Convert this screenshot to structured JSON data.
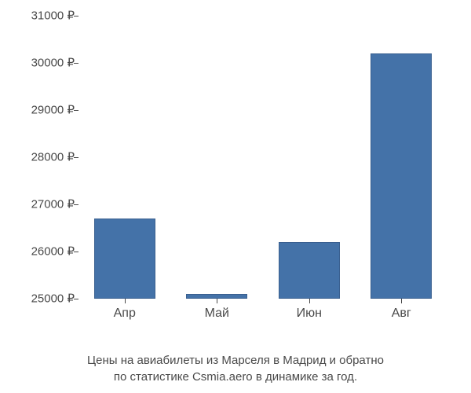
{
  "chart": {
    "type": "bar",
    "categories": [
      "Апр",
      "Май",
      "Июн",
      "Авг"
    ],
    "values": [
      26700,
      25100,
      26200,
      30200
    ],
    "bar_color": "#4472a8",
    "bar_border_color": "#3a6090",
    "bar_width_ratio": 0.75,
    "ylim": [
      25000,
      31000
    ],
    "ytick_step": 1000,
    "ytick_labels": [
      "25000 ₽",
      "26000 ₽",
      "27000 ₽",
      "28000 ₽",
      "29000 ₽",
      "30000 ₽",
      "31000 ₽"
    ],
    "ytick_values": [
      25000,
      26000,
      27000,
      28000,
      29000,
      30000,
      31000
    ],
    "axis_color": "#888888",
    "text_color": "#4a4a4a",
    "tick_fontsize": 15,
    "label_fontsize": 16,
    "caption_fontsize": 15,
    "background_color": "#ffffff",
    "caption_line1": "Цены на авиабилеты из Марселя в Мадрид и обратно",
    "caption_line2": "по статистике Csmia.aero в динамике за год."
  }
}
